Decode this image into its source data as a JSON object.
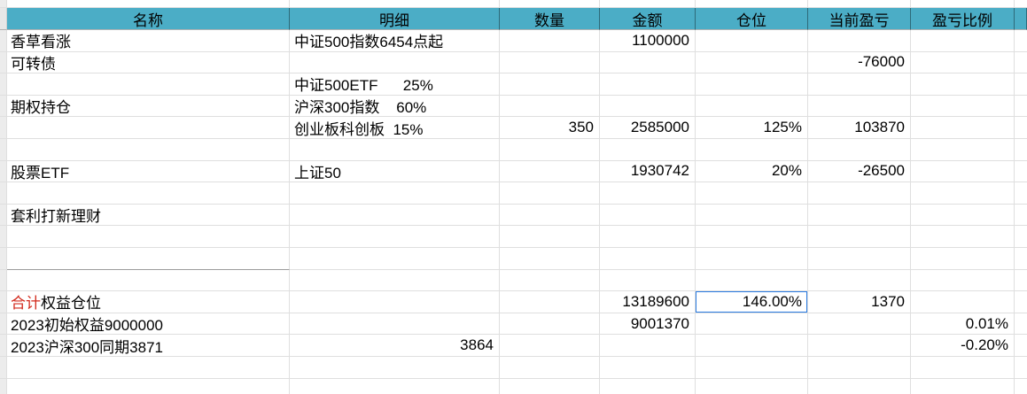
{
  "sheet": {
    "columns": [
      {
        "key": "name",
        "label": "名称"
      },
      {
        "key": "detail",
        "label": "明细"
      },
      {
        "key": "qty",
        "label": "数量"
      },
      {
        "key": "amount",
        "label": "金额"
      },
      {
        "key": "position",
        "label": "仓位"
      },
      {
        "key": "pnl",
        "label": "当前盈亏"
      },
      {
        "key": "ratio",
        "label": "盈亏比例"
      }
    ],
    "rows": [
      {
        "name": "香草看涨",
        "detail": "中证500指数6454点起",
        "qty": "",
        "amount": "1100000",
        "position": "",
        "pnl": "",
        "ratio": ""
      },
      {
        "name": "可转债",
        "detail": "",
        "qty": "",
        "amount": "",
        "position": "",
        "pnl": "-76000",
        "ratio": ""
      },
      {
        "name": "",
        "detail": "中证500ETF      25%",
        "qty": "",
        "amount": "",
        "position": "",
        "pnl": "",
        "ratio": ""
      },
      {
        "name": "期权持仓",
        "detail": "沪深300指数    60%",
        "qty": "",
        "amount": "",
        "position": "",
        "pnl": "",
        "ratio": ""
      },
      {
        "name": "",
        "detail": "创业板科创板  15%",
        "qty": "350",
        "amount": "2585000",
        "position": "125%",
        "pnl": "103870",
        "ratio": ""
      },
      {
        "name": "",
        "detail": "",
        "qty": "",
        "amount": "",
        "position": "",
        "pnl": "",
        "ratio": ""
      },
      {
        "name": "股票ETF",
        "detail": "上证50",
        "qty": "",
        "amount": "1930742",
        "position": "20%",
        "pnl": "-26500",
        "ratio": ""
      },
      {
        "name": "",
        "detail": "",
        "qty": "",
        "amount": "",
        "position": "",
        "pnl": "",
        "ratio": ""
      },
      {
        "name": "套利打新理财",
        "detail": "",
        "qty": "",
        "amount": "",
        "position": "",
        "pnl": "",
        "ratio": ""
      },
      {
        "name": "",
        "detail": "",
        "qty": "",
        "amount": "",
        "position": "",
        "pnl": "",
        "ratio": ""
      },
      {
        "name": "",
        "detail": "",
        "qty": "",
        "amount": "",
        "position": "",
        "pnl": "",
        "ratio": "",
        "name_bottom_border": true
      },
      {
        "name": "",
        "detail": "",
        "qty": "",
        "amount": "",
        "position": "",
        "pnl": "",
        "ratio": ""
      },
      {
        "name_rich": [
          {
            "text": "合计",
            "color": "#d2291c"
          },
          {
            "text": "权益仓位",
            "color": "#000000"
          }
        ],
        "detail": "",
        "qty": "",
        "amount": "13189600",
        "position": "146.00%",
        "position_selected": true,
        "pnl": "1370",
        "ratio": ""
      },
      {
        "name": "2023初始权益9000000",
        "detail": "",
        "qty": "",
        "amount": "9001370",
        "position": "",
        "pnl": "",
        "ratio": "0.01%"
      },
      {
        "name": "2023沪深300同期3871",
        "detail": "3864",
        "detail_align": "right",
        "qty": "",
        "amount": "",
        "position": "",
        "pnl": "",
        "ratio": "-0.20%"
      },
      {
        "name": "",
        "detail": "",
        "qty": "",
        "amount": "",
        "position": "",
        "pnl": "",
        "ratio": ""
      }
    ],
    "selection": {
      "row_index": 12,
      "column": "position",
      "value": "146.00%"
    },
    "colors": {
      "header_bg": "#4badc6",
      "selection_border": "#2b7ce2",
      "total_label_red": "#d2291c"
    }
  }
}
